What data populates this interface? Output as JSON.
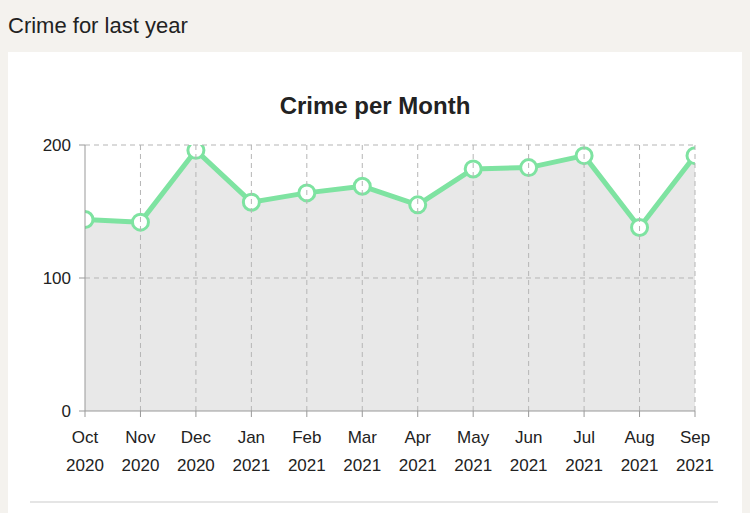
{
  "header": {
    "title": "Crime for last year"
  },
  "chart_data": {
    "type": "line",
    "title": "Crime per Month",
    "categories": [
      "Oct 2020",
      "Nov 2020",
      "Dec 2020",
      "Jan 2021",
      "Feb 2021",
      "Mar 2021",
      "Apr 2021",
      "May 2021",
      "Jun 2021",
      "Jul 2021",
      "Aug 2021",
      "Sep 2021"
    ],
    "values": [
      144,
      142,
      196,
      157,
      164,
      169,
      155,
      182,
      183,
      192,
      138,
      192
    ],
    "color": "#7ee3a1",
    "marker": "circle",
    "ylim": [
      0,
      200
    ],
    "yticks": [
      0,
      100,
      200
    ],
    "grid": true
  }
}
